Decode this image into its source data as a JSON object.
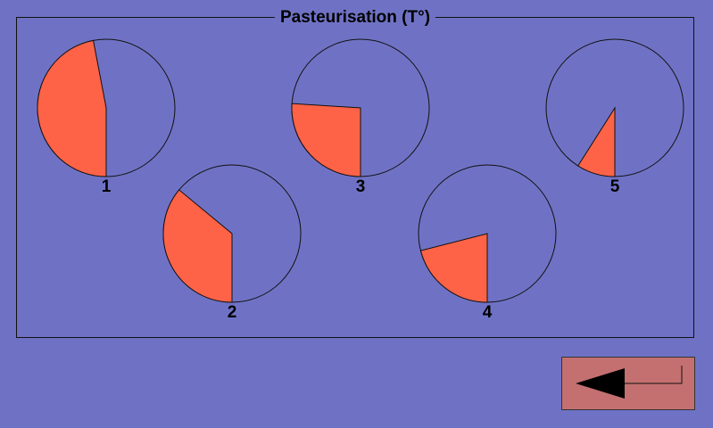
{
  "panel": {
    "title": "Pasteurisation (T°)"
  },
  "gauges": [
    {
      "label": "1",
      "fraction": 0.47
    },
    {
      "label": "2",
      "fraction": 0.36
    },
    {
      "label": "3",
      "fraction": 0.26
    },
    {
      "label": "4",
      "fraction": 0.21
    },
    {
      "label": "5",
      "fraction": 0.09
    }
  ],
  "colors": {
    "background": "#6f72c4",
    "gauge_fill": "#ff6347",
    "button": "#c47070"
  },
  "back_button": {
    "icon": "return-arrow-icon"
  }
}
